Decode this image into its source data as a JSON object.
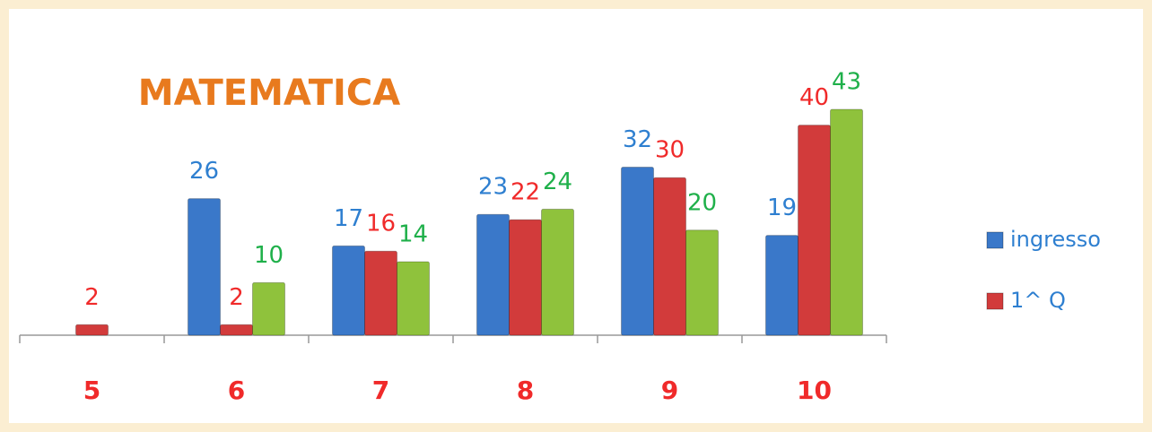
{
  "chart_data": {
    "type": "bar",
    "title": "MATEMATICA",
    "categories": [
      "5",
      "6",
      "7",
      "8",
      "9",
      "10"
    ],
    "series": [
      {
        "name": "ingresso",
        "color": "#3a78c9",
        "values": [
          null,
          26,
          17,
          23,
          32,
          19
        ]
      },
      {
        "name": "1^ Q",
        "color": "#d23b3b",
        "values": [
          2,
          2,
          16,
          22,
          30,
          40
        ]
      },
      {
        "color": "#8fc23c",
        "values": [
          null,
          10,
          14,
          24,
          20,
          43
        ]
      }
    ],
    "label_colors": [
      "#2e7fd0",
      "#f02a2a",
      "#1fb04a"
    ],
    "category_color": "#f02a2a",
    "title_color": "#e87a1e",
    "ylim": [
      0,
      45
    ],
    "legend": "right"
  }
}
